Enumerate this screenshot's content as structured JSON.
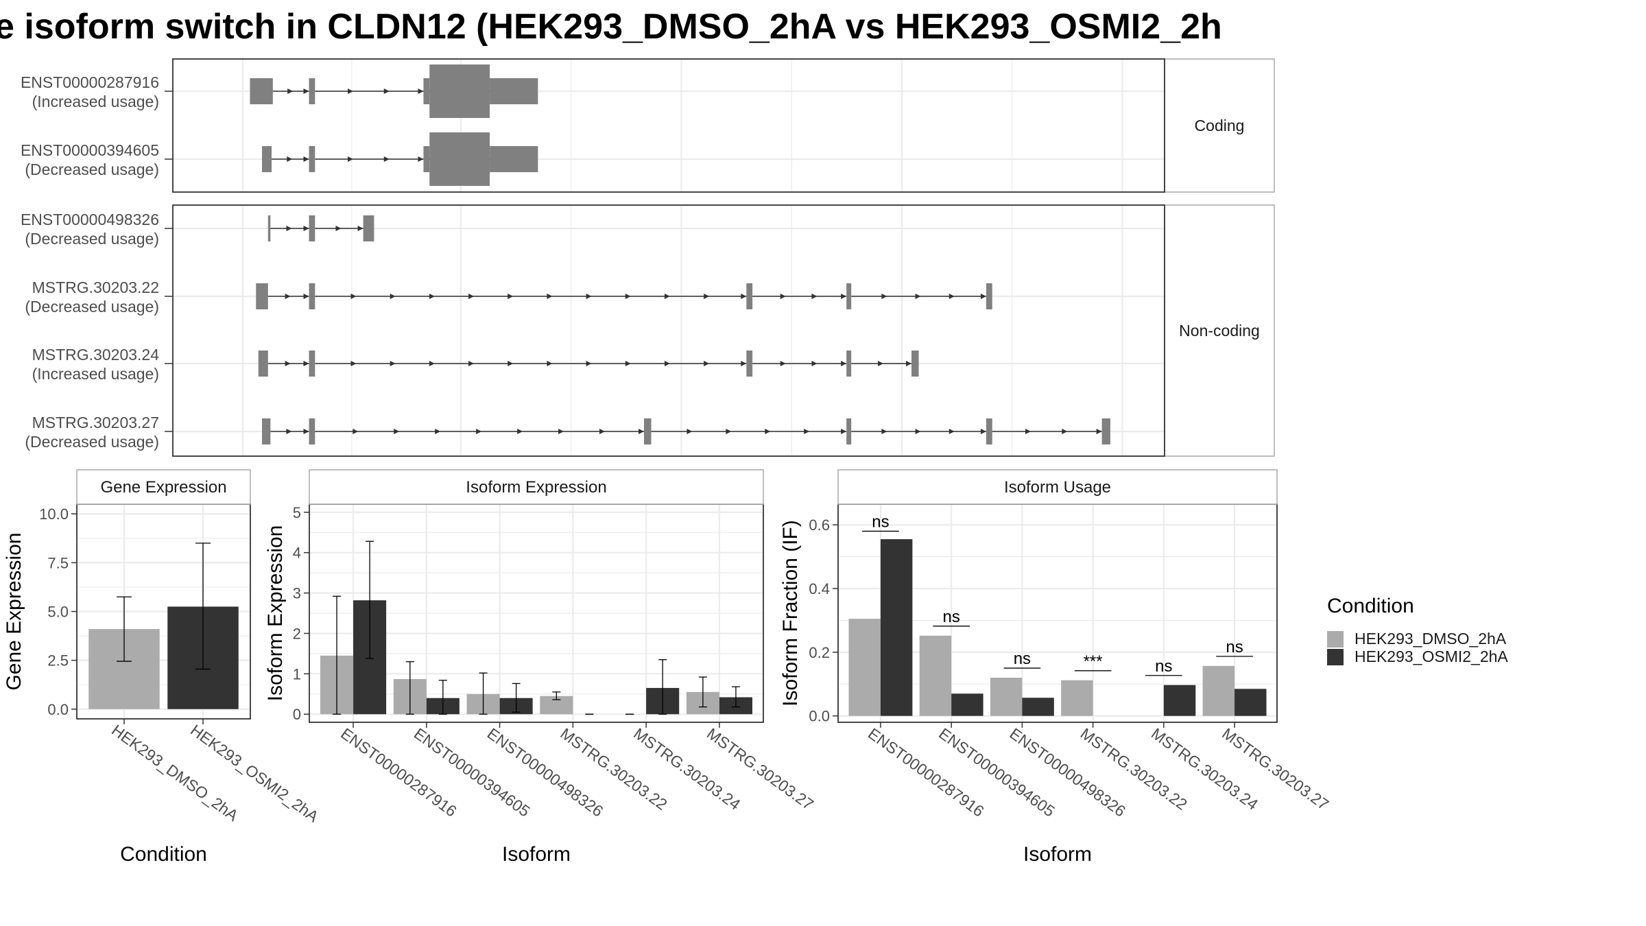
{
  "title": "e isoform switch in CLDN12 (HEK293_DMSO_2hA vs HEK293_OSMI2_2h",
  "colors": {
    "dmso": "#ababab",
    "osmi2": "#333333",
    "exon": "#808080",
    "grid": "#ebebeb",
    "frame": "#333333",
    "strip_border": "#a9a9a9"
  },
  "chart_data": [
    {
      "type": "gene-structure",
      "facets": [
        {
          "label": "Coding",
          "isoforms": [
            "ENST00000287916",
            "ENST00000394605"
          ]
        },
        {
          "label": "Non-coding",
          "isoforms": [
            "ENST00000498326",
            "MSTRG.30203.22",
            "MSTRG.30203.24",
            "MSTRG.30203.27"
          ]
        }
      ],
      "isoforms": [
        {
          "id": "ENST00000287916",
          "usage": "(Increased usage)",
          "facet": "Coding",
          "exons": [
            [
              1,
              20,
              "utr"
            ],
            [
              50,
              55,
              "utr"
            ],
            [
              145,
              150,
              "utr"
            ],
            [
              150,
              200,
              "cds"
            ],
            [
              200,
              240,
              "utr"
            ]
          ]
        },
        {
          "id": "ENST00000394605",
          "usage": "(Decreased usage)",
          "facet": "Coding",
          "exons": [
            [
              11,
              19,
              "utr"
            ],
            [
              50,
              55,
              "utr"
            ],
            [
              145,
              150,
              "utr"
            ],
            [
              150,
              200,
              "cds"
            ],
            [
              200,
              240,
              "utr"
            ]
          ]
        },
        {
          "id": "ENST00000498326",
          "usage": "(Decreased usage)",
          "facet": "Non-coding",
          "exons": [
            [
              16,
              18,
              "utr"
            ],
            [
              50,
              55,
              "utr"
            ],
            [
              95,
              104,
              "utr"
            ]
          ]
        },
        {
          "id": "MSTRG.30203.22",
          "usage": "(Decreased usage)",
          "facet": "Non-coding",
          "exons": [
            [
              6,
              16,
              "utr"
            ],
            [
              50,
              55,
              "utr"
            ],
            [
              413,
              418,
              "utr"
            ],
            [
              496,
              500,
              "utr"
            ],
            [
              612,
              617,
              "utr"
            ]
          ]
        },
        {
          "id": "MSTRG.30203.24",
          "usage": "(Increased usage)",
          "facet": "Non-coding",
          "exons": [
            [
              8,
              16,
              "utr"
            ],
            [
              50,
              55,
              "utr"
            ],
            [
              413,
              418,
              "utr"
            ],
            [
              496,
              500,
              "utr"
            ],
            [
              550,
              556,
              "utr"
            ]
          ]
        },
        {
          "id": "MSTRG.30203.27",
          "usage": "(Decreased usage)",
          "facet": "Non-coding",
          "exons": [
            [
              11,
              18,
              "utr"
            ],
            [
              50,
              55,
              "utr"
            ],
            [
              328,
              334,
              "utr"
            ],
            [
              496,
              500,
              "utr"
            ],
            [
              612,
              617,
              "utr"
            ],
            [
              708,
              715,
              "utr"
            ]
          ]
        }
      ]
    },
    {
      "type": "bar",
      "title": "Gene Expression",
      "xlabel": "Condition",
      "ylabel": "Gene Expression",
      "ylim": [
        -0.5,
        10.5
      ],
      "yticks": [
        0,
        2.5,
        5,
        7.5,
        10
      ],
      "categories": [
        "HEK293_DMSO_2hA",
        "HEK293_OSMI2_2hA"
      ],
      "values": [
        4.1,
        5.25
      ],
      "error": [
        [
          2.45,
          5.75
        ],
        [
          2.05,
          8.5
        ]
      ]
    },
    {
      "type": "bar",
      "title": "Isoform Expression",
      "xlabel": "Isoform",
      "ylabel": "Isoform Expression",
      "ylim": [
        -0.2,
        5.2
      ],
      "yticks": [
        0,
        1,
        2,
        3,
        4,
        5
      ],
      "categories": [
        "ENST00000287916",
        "ENST00000394605",
        "ENST00000498326",
        "MSTRG.30203.22",
        "MSTRG.30203.24",
        "MSTRG.30203.27"
      ],
      "series": [
        {
          "name": "HEK293_DMSO_2hA",
          "values": [
            1.45,
            0.87,
            0.5,
            0.45,
            0.0,
            0.55
          ],
          "error": [
            [
              0.0,
              2.92
            ],
            [
              0.0,
              1.3
            ],
            [
              0.0,
              1.02
            ],
            [
              0.36,
              0.55
            ],
            [
              0.0,
              0.0
            ],
            [
              0.18,
              0.92
            ]
          ]
        },
        {
          "name": "HEK293_OSMI2_2hA",
          "values": [
            2.82,
            0.4,
            0.4,
            0.0,
            0.65,
            0.42
          ],
          "error": [
            [
              1.38,
              4.28
            ],
            [
              0.0,
              0.84
            ],
            [
              0.05,
              0.76
            ],
            [
              0.0,
              0.0
            ],
            [
              0.0,
              1.35
            ],
            [
              0.18,
              0.68
            ]
          ]
        }
      ]
    },
    {
      "type": "bar",
      "title": "Isoform Usage",
      "xlabel": "Isoform",
      "ylabel": "Isoform Fraction (IF)",
      "ylim": [
        -0.02,
        0.665
      ],
      "yticks": [
        0.0,
        0.2,
        0.4,
        0.6
      ],
      "categories": [
        "ENST00000287916",
        "ENST00000394605",
        "ENST00000498326",
        "MSTRG.30203.22",
        "MSTRG.30203.24",
        "MSTRG.30203.27"
      ],
      "series": [
        {
          "name": "HEK293_DMSO_2hA",
          "values": [
            0.305,
            0.252,
            0.12,
            0.112,
            0.0,
            0.157
          ]
        },
        {
          "name": "HEK293_OSMI2_2hA",
          "values": [
            0.555,
            0.07,
            0.057,
            0.0,
            0.097,
            0.085
          ]
        }
      ],
      "annotations": [
        {
          "category": "ENST00000287916",
          "label": "ns",
          "y": 0.58
        },
        {
          "category": "ENST00000394605",
          "label": "ns",
          "y": 0.282
        },
        {
          "category": "ENST00000498326",
          "label": "ns",
          "y": 0.15
        },
        {
          "category": "MSTRG.30203.22",
          "label": "***",
          "y": 0.142
        },
        {
          "category": "MSTRG.30203.24",
          "label": "ns",
          "y": 0.127
        },
        {
          "category": "MSTRG.30203.27",
          "label": "ns",
          "y": 0.187
        }
      ]
    }
  ],
  "legend": {
    "title": "Condition",
    "placement": "right",
    "items": [
      {
        "label": "HEK293_DMSO_2hA",
        "color": "#ababab"
      },
      {
        "label": "HEK293_OSMI2_2hA",
        "color": "#333333"
      }
    ]
  }
}
